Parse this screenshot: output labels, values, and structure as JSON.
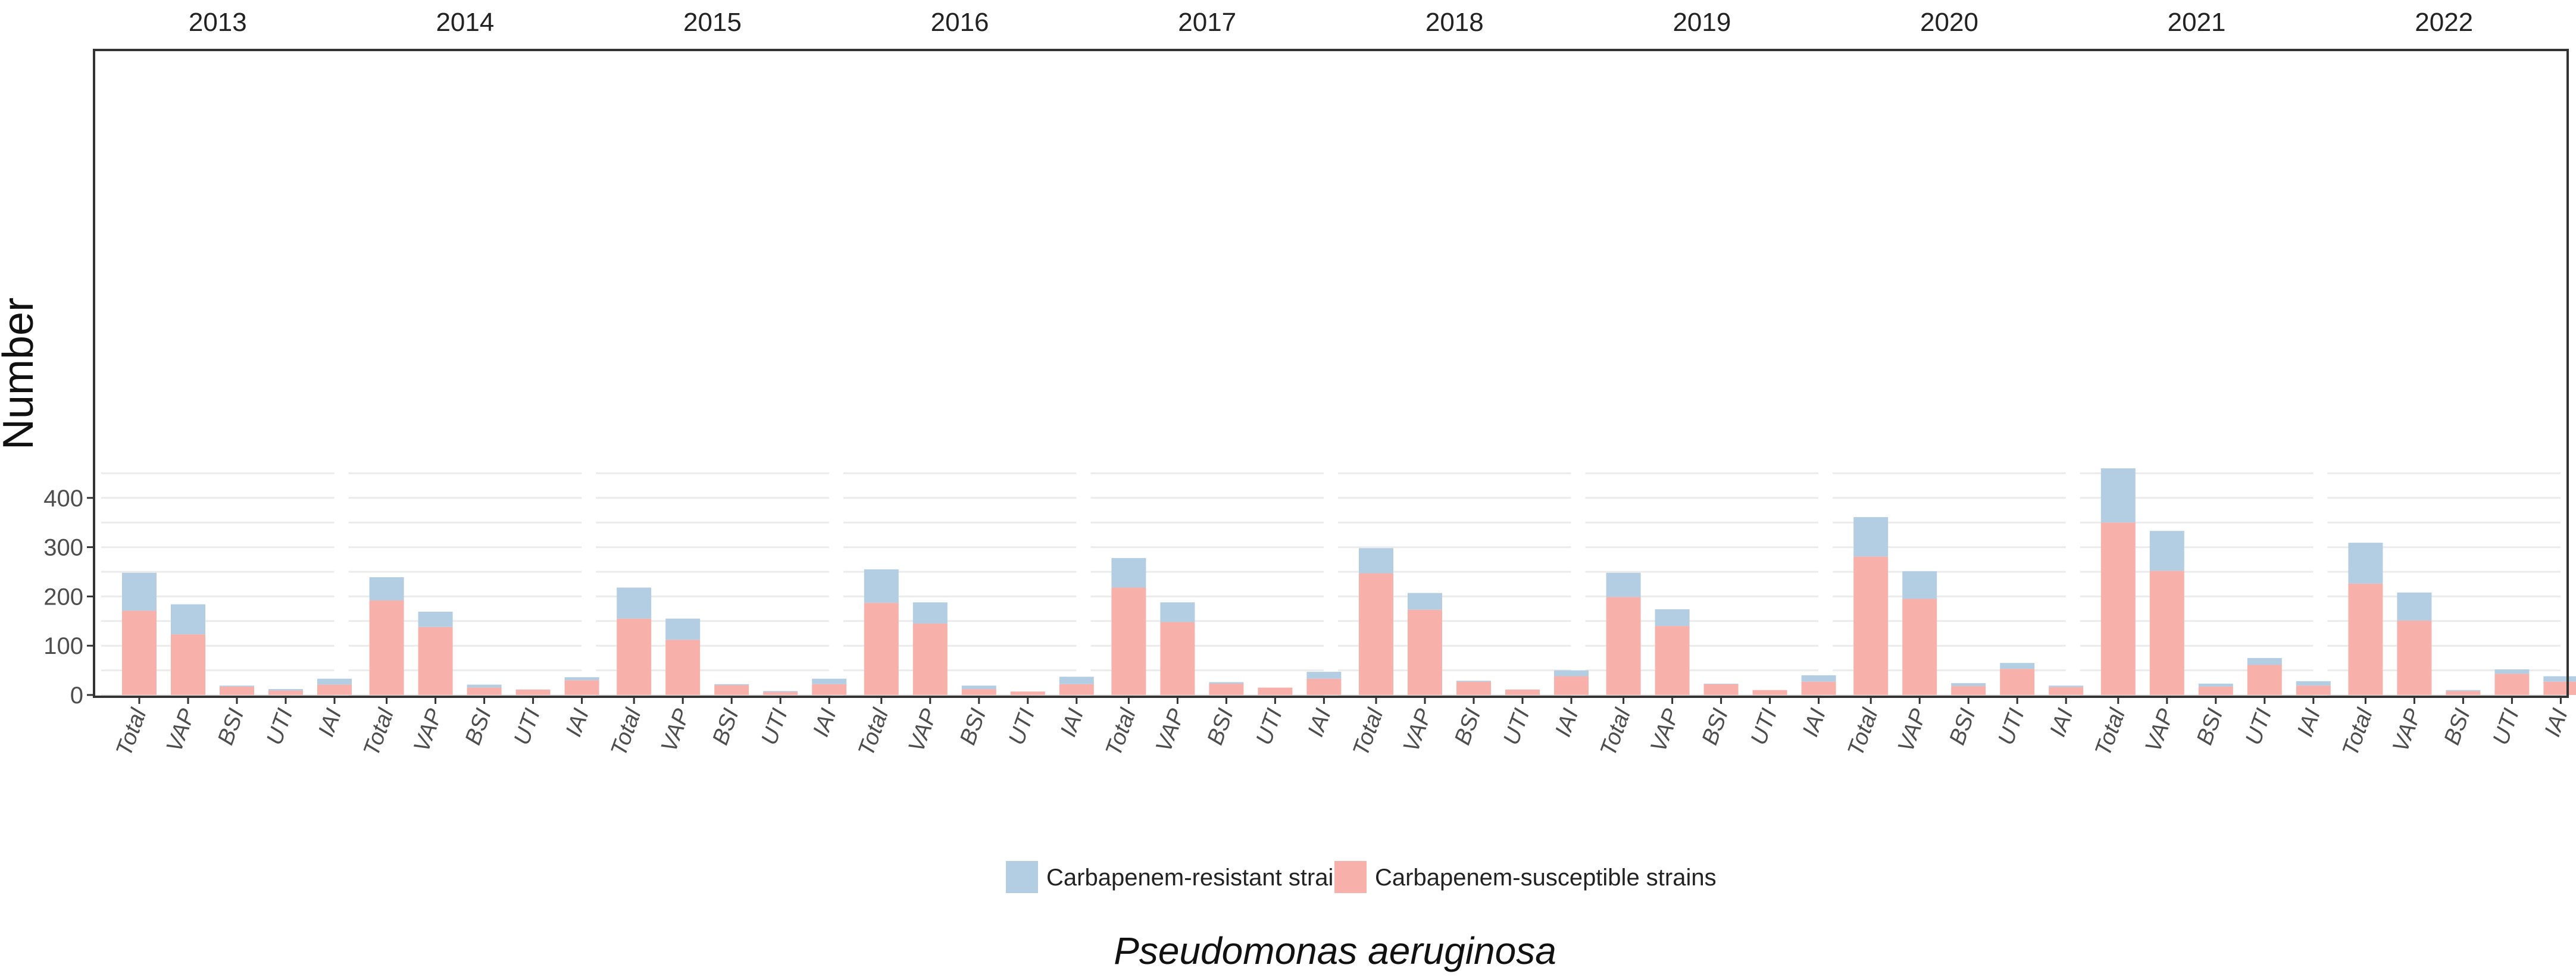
{
  "chart_data": {
    "type": "bar",
    "stacked": true,
    "faceted_by": "year",
    "years": [
      "2013",
      "2014",
      "2015",
      "2016",
      "2017",
      "2018",
      "2019",
      "2020",
      "2021",
      "2022"
    ],
    "categories": [
      "Total",
      "VAP",
      "BSI",
      "UTI",
      "IAI"
    ],
    "ylabel": "Number",
    "xlabel": "Pseudomonas aeruginosa",
    "ylim": [
      0,
      470
    ],
    "yticks": [
      0,
      100,
      200,
      300,
      400
    ],
    "legend_position": "bottom",
    "series": [
      {
        "name": "Carbapenem-susceptible strains",
        "color": "#f8b1aa",
        "values": [
          [
            171,
            123,
            17,
            9,
            21
          ],
          [
            192,
            138,
            15,
            11,
            30
          ],
          [
            155,
            112,
            20,
            6,
            22
          ],
          [
            187,
            145,
            12,
            7,
            22
          ],
          [
            218,
            148,
            23,
            15,
            33
          ],
          [
            247,
            173,
            27,
            11,
            38
          ],
          [
            199,
            140,
            22,
            10,
            27
          ],
          [
            281,
            195,
            18,
            53,
            16
          ],
          [
            350,
            252,
            17,
            61,
            19
          ],
          [
            226,
            151,
            8,
            43,
            27
          ]
        ]
      },
      {
        "name": "Carbapenem-resistant strains",
        "color": "#b3cde3",
        "values": [
          [
            77,
            61,
            2,
            3,
            12
          ],
          [
            47,
            31,
            6,
            0,
            6
          ],
          [
            63,
            43,
            2,
            2,
            11
          ],
          [
            68,
            43,
            7,
            0,
            15
          ],
          [
            60,
            40,
            3,
            0,
            14
          ],
          [
            51,
            34,
            2,
            0,
            12
          ],
          [
            49,
            34,
            1,
            0,
            13
          ],
          [
            80,
            56,
            6,
            12,
            3
          ],
          [
            110,
            81,
            6,
            14,
            9
          ],
          [
            83,
            57,
            2,
            9,
            11
          ]
        ]
      }
    ]
  }
}
